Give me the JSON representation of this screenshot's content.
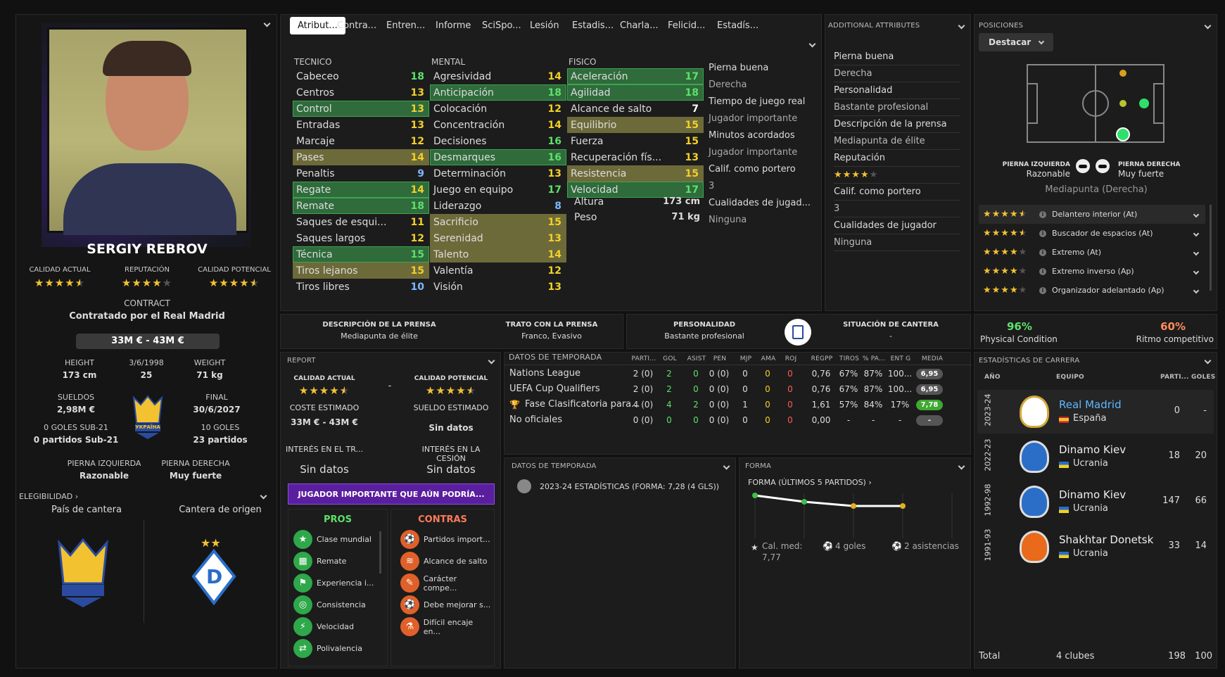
{
  "player": {
    "name": "SERGIY REBROV",
    "labels": {
      "current_ability": "CALIDAD ACTUAL",
      "reputation": "REPUTACIÓN",
      "potential_ability": "CALIDAD POTENCIAL",
      "contract": "CONTRACT"
    },
    "ratings": {
      "current_ability": 4.5,
      "reputation": 4,
      "potential_ability": 4.5
    },
    "contract": "Contratado por el Real Madrid",
    "value": "33M € - 43M €",
    "height_label": "HEIGHT",
    "height": "173 cm",
    "dob": "3/6/1998",
    "age": "25",
    "weight_label": "WEIGHT",
    "weight": "71 kg",
    "wage_label": "SUELDOS",
    "wage": "2,98M €",
    "expiry_label": "FINAL",
    "expiry": "30/6/2027",
    "u21_goals": "0 GOLES SUB-21",
    "u21_apps": "0 partidos Sub-21",
    "intl_goals": "10 GOLES",
    "intl_apps": "23 partidos",
    "left_foot_label": "PIERNA IZQUIERDA",
    "left_foot": "Razonable",
    "right_foot_label": "PIERNA DERECHA",
    "right_foot": "Muy fuerte",
    "eligibility": "ELEGIBILIDAD",
    "youth_nation_label": "País de cantera",
    "youth_club_label": "Cantera de origen",
    "nation_badge": "УКРАЇНА"
  },
  "tabs": [
    "Atribut...",
    "Contra...",
    "Entren...",
    "Informe",
    "SciSpo...",
    "Lesión",
    "Estadis...",
    "Charla...",
    "Felicid...",
    "Estadís..."
  ],
  "attributes": {
    "tecnico": {
      "title": "TECNICO",
      "rows": [
        {
          "n": "Cabeceo",
          "v": "18",
          "c": "g",
          "h": ""
        },
        {
          "n": "Centros",
          "v": "13",
          "c": "y",
          "h": ""
        },
        {
          "n": "Control",
          "v": "13",
          "c": "y",
          "h": "hg"
        },
        {
          "n": "Entradas",
          "v": "13",
          "c": "y",
          "h": ""
        },
        {
          "n": "Marcaje",
          "v": "12",
          "c": "y",
          "h": ""
        },
        {
          "n": "Pases",
          "v": "14",
          "c": "y",
          "h": "ho"
        },
        {
          "n": "Penaltis",
          "v": "9",
          "c": "b",
          "h": ""
        },
        {
          "n": "Regate",
          "v": "14",
          "c": "y",
          "h": "hg"
        },
        {
          "n": "Remate",
          "v": "18",
          "c": "g",
          "h": "hg"
        },
        {
          "n": "Saques de esqui...",
          "v": "11",
          "c": "y",
          "h": ""
        },
        {
          "n": "Saques largos",
          "v": "12",
          "c": "y",
          "h": ""
        },
        {
          "n": "Técnica",
          "v": "15",
          "c": "g",
          "h": "hg"
        },
        {
          "n": "Tiros lejanos",
          "v": "15",
          "c": "y",
          "h": "ho"
        },
        {
          "n": "Tiros libres",
          "v": "10",
          "c": "b",
          "h": ""
        }
      ]
    },
    "mental": {
      "title": "MENTAL",
      "rows": [
        {
          "n": "Agresividad",
          "v": "14",
          "c": "y",
          "h": ""
        },
        {
          "n": "Anticipación",
          "v": "18",
          "c": "g",
          "h": "hg"
        },
        {
          "n": "Colocación",
          "v": "12",
          "c": "y",
          "h": ""
        },
        {
          "n": "Concentración",
          "v": "14",
          "c": "y",
          "h": ""
        },
        {
          "n": "Decisiones",
          "v": "16",
          "c": "g",
          "h": ""
        },
        {
          "n": "Desmarques",
          "v": "16",
          "c": "g",
          "h": "hg"
        },
        {
          "n": "Determinación",
          "v": "13",
          "c": "y",
          "h": ""
        },
        {
          "n": "Juego en equipo",
          "v": "17",
          "c": "g",
          "h": ""
        },
        {
          "n": "Liderazgo",
          "v": "8",
          "c": "b",
          "h": ""
        },
        {
          "n": "Sacrificio",
          "v": "15",
          "c": "y",
          "h": "ho"
        },
        {
          "n": "Serenidad",
          "v": "13",
          "c": "y",
          "h": "ho"
        },
        {
          "n": "Talento",
          "v": "14",
          "c": "y",
          "h": "ho"
        },
        {
          "n": "Valentía",
          "v": "12",
          "c": "y",
          "h": ""
        },
        {
          "n": "Visión",
          "v": "13",
          "c": "y",
          "h": ""
        }
      ]
    },
    "fisico": {
      "title": "FISICO",
      "rows": [
        {
          "n": "Aceleración",
          "v": "17",
          "c": "g",
          "h": "hg"
        },
        {
          "n": "Agilidad",
          "v": "18",
          "c": "g",
          "h": "hg"
        },
        {
          "n": "Alcance de salto",
          "v": "7",
          "c": "w",
          "h": ""
        },
        {
          "n": "Equilibrio",
          "v": "15",
          "c": "y",
          "h": "ho"
        },
        {
          "n": "Fuerza",
          "v": "15",
          "c": "y",
          "h": ""
        },
        {
          "n": "Recuperación fís...",
          "v": "13",
          "c": "y",
          "h": ""
        },
        {
          "n": "Resistencia",
          "v": "15",
          "c": "y",
          "h": "ho"
        },
        {
          "n": "Velocidad",
          "v": "17",
          "c": "g",
          "h": "hg"
        }
      ]
    },
    "height_label": "Altura",
    "height": "173 cm",
    "weight_label": "Peso",
    "weight": "71 kg"
  },
  "side_info": [
    {
      "t": "Pierna buena",
      "s": false
    },
    {
      "t": "Derecha",
      "s": true
    },
    {
      "t": "Tiempo de juego real",
      "s": false
    },
    {
      "t": "Jugador importante",
      "s": true
    },
    {
      "t": "Minutos acordados",
      "s": false
    },
    {
      "t": "Jugador importante",
      "s": true
    },
    {
      "t": "Calif. como portero",
      "s": false
    },
    {
      "t": "3",
      "s": true
    },
    {
      "t": "Cualidades de jugad...",
      "s": false
    },
    {
      "t": "Ninguna",
      "s": true
    }
  ],
  "additional": {
    "title": "ADDITIONAL ATTRIBUTES",
    "rows": [
      "Pierna buena",
      "Derecha",
      "Personalidad",
      "Bastante profesional",
      "Descripción de la prensa",
      "Mediapunta de élite",
      "Reputación",
      "",
      "Calif. como portero",
      "3",
      "Cualidades de jugador",
      "Ninguna"
    ],
    "reputation_stars": 4
  },
  "positions": {
    "title": "POSICIONES",
    "button": "Destacar",
    "lf_label": "PIERNA IZQUIERDA",
    "lf": "Razonable",
    "rf_label": "PIERNA DERECHA",
    "rf": "Muy fuerte",
    "best": "Mediapunta (Derecha)",
    "roles": [
      {
        "stars": 4.5,
        "name": "Delantero interior (At)"
      },
      {
        "stars": 4.5,
        "name": "Buscador de espacios (At)"
      },
      {
        "stars": 4,
        "name": "Extremo (At)"
      },
      {
        "stars": 4,
        "name": "Extremo inverso (Ap)"
      },
      {
        "stars": 4,
        "name": "Organizador adelantado (Ap)"
      }
    ]
  },
  "media": {
    "press_label": "DESCRIPCIÓN DE LA PRENSA",
    "press": "Mediapunta de élite",
    "handling_label": "TRATO CON LA PRENSA",
    "handling": "Franco, Evasivo",
    "personality_label": "PERSONALIDAD",
    "personality": "Bastante profesional",
    "youth_label": "SITUACIÓN DE CANTERA",
    "youth": "-"
  },
  "condition": {
    "physical": "96%",
    "physical_label": "Physical Condition",
    "match": "60%",
    "match_label": "Ritmo competitivo"
  },
  "report": {
    "title": "REPORT",
    "ca": "CALIDAD ACTUAL",
    "pa": "CALIDAD POTENCIAL",
    "dash": "-",
    "cost_label": "COSTE ESTIMADO",
    "cost": "33M € - 43M €",
    "wage_label": "SUELDO ESTIMADO",
    "wage": "Sin datos",
    "transfer_label": "INTERÉS EN EL TR...",
    "transfer": "Sin datos",
    "loan_label": "INTERÉS EN LA CESIÓN",
    "loan": "Sin datos",
    "banner": "JUGADOR IMPORTANTE QUE AÚN PODRÍA...",
    "pros_title": "PROS",
    "cons_title": "CONTRAS",
    "pros": [
      "Clase mundial",
      "Remate",
      "Experiencia i...",
      "Consistencia",
      "Velocidad",
      "Polivalencia"
    ],
    "cons": [
      "Partidos import...",
      "Alcance de salto",
      "Carácter compe...",
      "Debe mejorar s...",
      "Difícil encaje en..."
    ]
  },
  "season": {
    "title": "DATOS DE TEMPORADA",
    "headers": [
      "PARTI...",
      "GOL",
      "ASIST",
      "PEN",
      "MJP",
      "AMA",
      "ROJ",
      "REGPP",
      "TIROS",
      "% PA...",
      "ENT G",
      "MEDIA"
    ],
    "rows": [
      {
        "c": "Nations League",
        "v": [
          "2 (0)",
          "2",
          "0",
          "0 (0)",
          "0",
          "0",
          "0",
          "0,76",
          "67%",
          "87%",
          "100..."
        ],
        "m": "6,95"
      },
      {
        "c": "UEFA Cup Qualifiers",
        "v": [
          "2 (0)",
          "2",
          "0",
          "0 (0)",
          "0",
          "0",
          "0",
          "0,76",
          "67%",
          "87%",
          "100..."
        ],
        "m": "6,95"
      },
      {
        "c": "Fase Clasificatoria para...",
        "v": [
          "4 (0)",
          "4",
          "2",
          "0 (0)",
          "1",
          "0",
          "0",
          "1,61",
          "57%",
          "84%",
          "17%"
        ],
        "m": "7,78"
      },
      {
        "c": "No oficiales",
        "v": [
          "0 (0)",
          "0",
          "0",
          "0 (0)",
          "0",
          "0",
          "0",
          "0,00",
          "-",
          "-",
          "-"
        ],
        "m": "-"
      }
    ]
  },
  "season2": {
    "title": "DATOS DE TEMPORADA",
    "summary": "2023-24 ESTADÍSTICAS (FORMA: 7,28 (4 GLS))"
  },
  "form": {
    "title": "FORMA",
    "sub": "FORMA (ÚLTIMOS 5 PARTIDOS)",
    "avg_label": "Cal. med:",
    "avg": "7,77",
    "goals": "4 goles",
    "assists": "2 asistencias"
  },
  "chart_data": {
    "type": "line",
    "x": [
      1,
      2,
      3,
      4
    ],
    "values": [
      7.9,
      7.6,
      7.4,
      7.4
    ],
    "ylim": [
      6,
      8
    ]
  },
  "career": {
    "title": "ESTADÍSTICAS DE CARRERA",
    "headers": {
      "year": "AÑO",
      "team": "EQUIPO",
      "apps": "PARTI...",
      "goals": "GOLES"
    },
    "rows": [
      {
        "year": "2023-24",
        "team": "Real Madrid",
        "country": "España",
        "apps": "0",
        "goals": "-"
      },
      {
        "year": "2022-23",
        "team": "Dinamo Kiev",
        "country": "Ucrania",
        "apps": "18",
        "goals": "20"
      },
      {
        "year": "1992-98",
        "team": "Dinamo Kiev",
        "country": "Ucrania",
        "apps": "147",
        "goals": "66"
      },
      {
        "year": "1991-93",
        "team": "Shakhtar Donetsk",
        "country": "Ucrania",
        "apps": "33",
        "goals": "14"
      }
    ],
    "total_label": "Total",
    "total_clubs": "4 clubes",
    "total_apps": "198",
    "total_goals": "100"
  },
  "colors": {
    "accent_green": "#3fa352",
    "gold": "#f2c230",
    "purple": "#5a1f9e"
  }
}
